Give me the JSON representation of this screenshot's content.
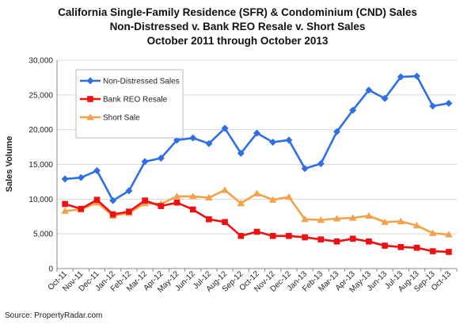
{
  "chart_data": {
    "type": "line",
    "title_lines": [
      "California Single-Family Residence (SFR) & Condominium (CND) Sales",
      "Non-Distressed v. Bank REO Resale v. Short Sales",
      "October 2011 through October 2013"
    ],
    "ylabel": "Sales Volume",
    "xlabel": "",
    "ylim": [
      0,
      30000
    ],
    "y_ticks": [
      "0",
      "5,000",
      "10,000",
      "15,000",
      "20,000",
      "25,000",
      "30,000"
    ],
    "grid": "horizontal",
    "legend_position": "top-left",
    "categories": [
      "Oct-11",
      "Nov-11",
      "Dec-11",
      "Jan-12",
      "Feb-12",
      "Mar-12",
      "Apr-12",
      "May-12",
      "Jun-12",
      "Jul-12",
      "Aug-12",
      "Sep-12",
      "Oct-12",
      "Nov-12",
      "Dec-12",
      "Jan-13",
      "Feb-13",
      "Mar-13",
      "Apr-13",
      "May-13",
      "Jun-13",
      "Jul-13",
      "Aug-13",
      "Sep-13",
      "Oct-13"
    ],
    "series": [
      {
        "name": "Non-Distressed Sales",
        "color": "#2e6fe6",
        "marker": "diamond",
        "values": [
          12900,
          13100,
          14100,
          9800,
          11200,
          15400,
          15900,
          18500,
          18800,
          18000,
          20200,
          16600,
          19500,
          18200,
          18500,
          14400,
          15100,
          19700,
          22800,
          25700,
          24500,
          27600,
          27700,
          23400,
          23800
        ]
      },
      {
        "name": "Bank REO Resale",
        "color": "#ee1111",
        "marker": "square",
        "values": [
          9300,
          8600,
          9900,
          7800,
          8200,
          9800,
          9000,
          9500,
          8500,
          7100,
          6700,
          4700,
          5300,
          4700,
          4700,
          4500,
          4200,
          3900,
          4300,
          3900,
          3300,
          3100,
          3000,
          2500,
          2400
        ]
      },
      {
        "name": "Short Sale",
        "color": "#f4a24a",
        "marker": "triangle",
        "values": [
          8300,
          8500,
          9500,
          7600,
          8000,
          9400,
          9300,
          10400,
          10400,
          10200,
          11300,
          9400,
          10800,
          9900,
          10300,
          7100,
          7000,
          7200,
          7300,
          7600,
          6700,
          6800,
          6200,
          5100,
          4900
        ]
      }
    ]
  },
  "source": "Source: PropertyRadar.com"
}
